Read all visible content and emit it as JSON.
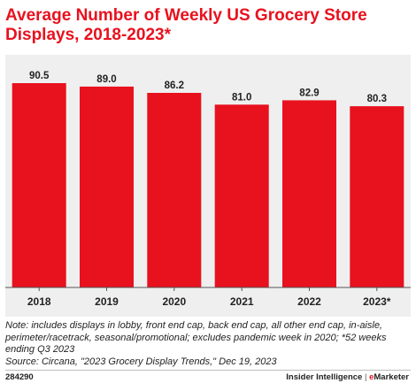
{
  "chart_data": {
    "type": "bar",
    "title": "Average Number of Weekly US Grocery Store Displays, 2018-2023*",
    "categories": [
      "2018",
      "2019",
      "2020",
      "2021",
      "2022",
      "2023*"
    ],
    "values": [
      90.5,
      89.0,
      86.2,
      81.0,
      82.9,
      80.3
    ],
    "value_labels": [
      "90.5",
      "89.0",
      "86.2",
      "81.0",
      "82.9",
      "80.3"
    ],
    "xlabel": "",
    "ylabel": "",
    "ylim": [
      0,
      96
    ],
    "grid": false,
    "legend": "none",
    "bar_color": "#e8111e"
  },
  "notes": {
    "note": "Note: includes displays in lobby, front end cap, back end cap, all other end cap, in-aisle, perimeter/racetrack, seasonal/promotional; excludes pandemic week in 2020; *52 weeks ending Q3 2023",
    "source": "Source: Circana, \"2023 Grocery Display Trends,\" Dec 19, 2023"
  },
  "footer": {
    "chart_id": "284290",
    "brand_left": "Insider Intelligence",
    "brand_sep": "|",
    "brand_e": "e",
    "brand_right": "Marketer"
  },
  "colors": {
    "accent": "#e8111e",
    "plot_background": "#efefef"
  }
}
